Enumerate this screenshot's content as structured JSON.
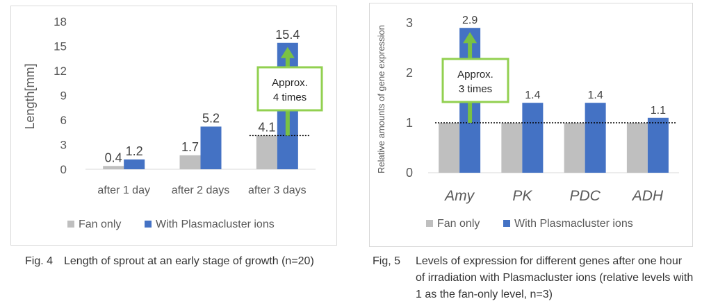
{
  "colors": {
    "fan_only": "#bfbfbf",
    "plasmacluster": "#4472c4",
    "arrow": "#7ac143",
    "callout_border": "#92d050"
  },
  "chart_data": [
    {
      "type": "bar",
      "ylabel": "Length[mm]",
      "yticks": [
        "0",
        "3",
        "6",
        "9",
        "12",
        "15",
        "18"
      ],
      "ylim": [
        0,
        18
      ],
      "categories": [
        "after 1 day",
        "after 2 days",
        "after 3 days"
      ],
      "series": [
        {
          "name": "Fan only",
          "values": [
            0.4,
            1.7,
            4.1
          ],
          "labels": [
            "0.4",
            "1.7",
            "4.1"
          ]
        },
        {
          "name": "With Plasmacluster ions",
          "values": [
            1.2,
            5.2,
            15.4
          ],
          "labels": [
            "1.2",
            "5.2",
            "15.4"
          ]
        }
      ],
      "reference_line": 4.1,
      "annotation": {
        "line1": "Approx.",
        "line2": "4 times"
      },
      "legend": "bottom",
      "grid": false
    },
    {
      "type": "bar",
      "ylabel": "Relative amounts of gene expression",
      "yticks": [
        "0",
        "1",
        "2",
        "3"
      ],
      "ylim": [
        0,
        3
      ],
      "categories": [
        "Amy",
        "PK",
        "PDC",
        "ADH"
      ],
      "series": [
        {
          "name": "Fan only",
          "values": [
            1,
            1,
            1,
            1
          ]
        },
        {
          "name": "With Plasmacluster ions",
          "values": [
            2.9,
            1.4,
            1.4,
            1.1
          ],
          "labels": [
            "2.9",
            "1.4",
            "1.4",
            "1.1"
          ]
        }
      ],
      "reference_line": 1,
      "annotation": {
        "line1": "Approx.",
        "line2": "3 times"
      },
      "legend": "bottom",
      "grid": false
    }
  ],
  "captions": {
    "left": {
      "number": "Fig. 4",
      "text": "Length of sprout at an early stage of growth (n=20)"
    },
    "right": {
      "number": "Fig, 5",
      "text": "Levels of expression for different genes after one hour of irradiation with Plasmacluster ions (relative levels with 1 as the fan-only level, n=3)"
    }
  }
}
